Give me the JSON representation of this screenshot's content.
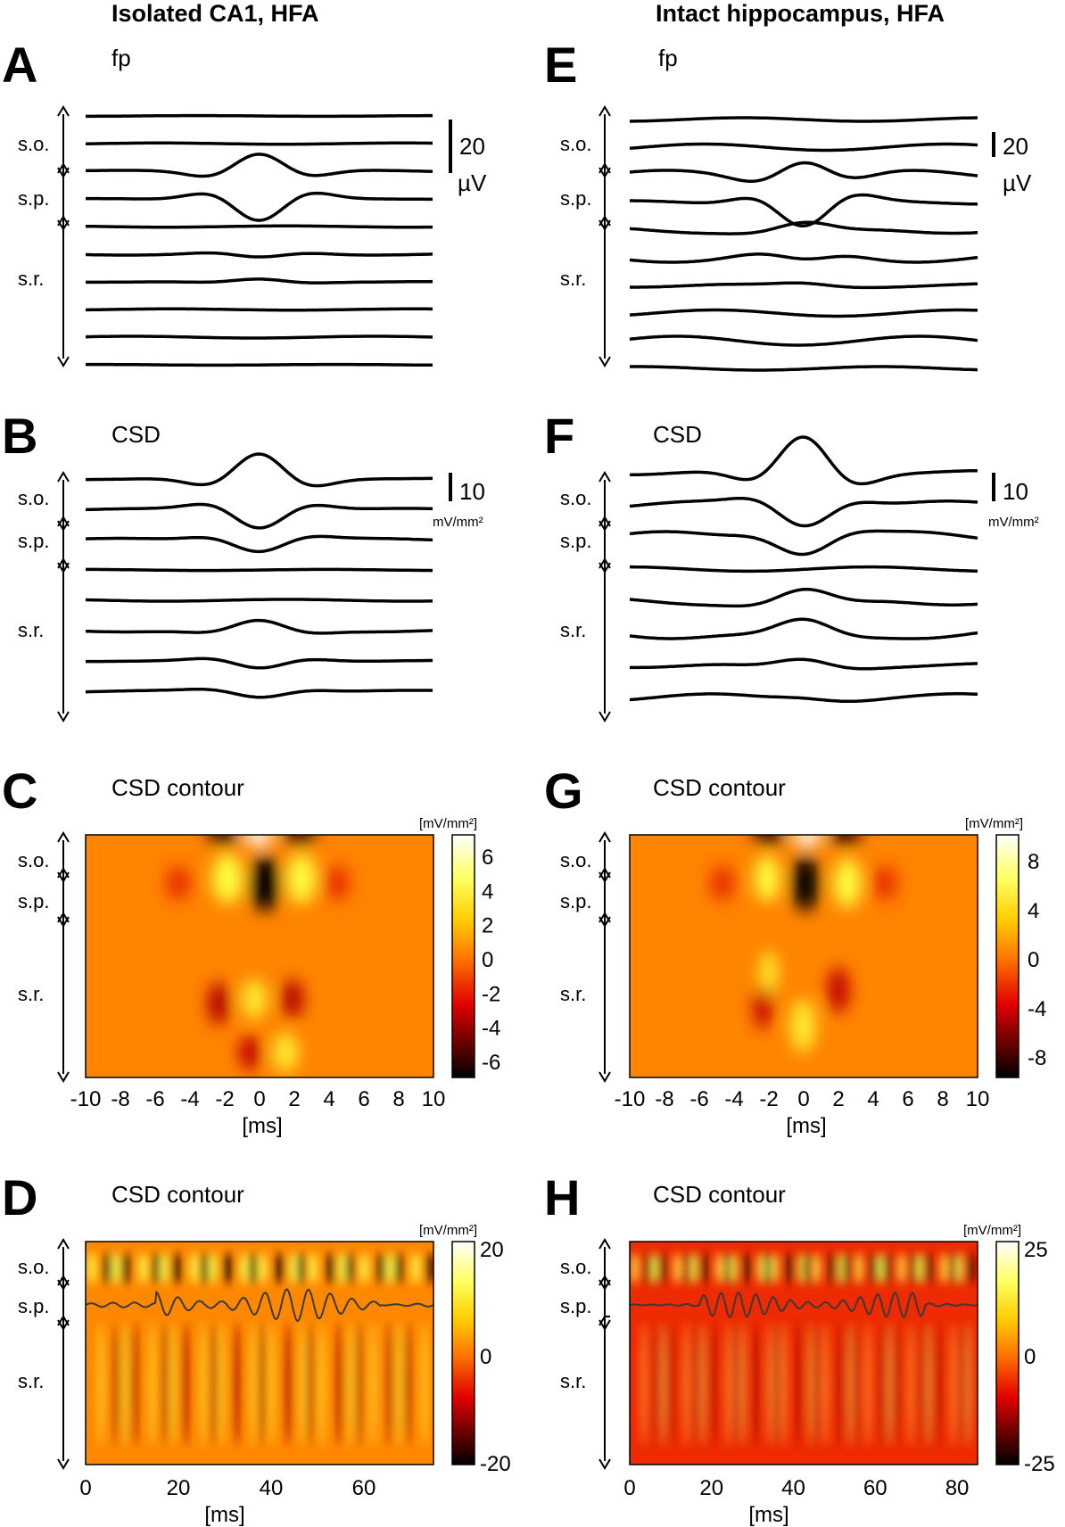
{
  "columns": [
    {
      "title": "Isolated CA1, HFA",
      "panels": {
        "fp": {
          "letter": "A",
          "subtitle": "fp",
          "scale_value": "20",
          "scale_unit": "µV"
        },
        "csd": {
          "letter": "B",
          "subtitle": "CSD",
          "scale_value": "10",
          "scale_unit": "mV/mm²"
        },
        "contour_short": {
          "letter": "C",
          "subtitle": "CSD contour",
          "unit": "[mV/mm²]",
          "colorbar_ticks": [
            "6",
            "4",
            "2",
            "0",
            "-2",
            "-4",
            "-6"
          ],
          "x_ticks": [
            "-10",
            "-8",
            "-6",
            "-4",
            "-2",
            "0",
            "2",
            "4",
            "6",
            "8",
            "10"
          ],
          "x_label": "[ms]"
        },
        "contour_long": {
          "letter": "D",
          "subtitle": "CSD contour",
          "unit": "[mV/mm²]",
          "colorbar_ticks": [
            "20",
            "0",
            "-20"
          ],
          "x_ticks": [
            "0",
            "20",
            "40",
            "60"
          ],
          "x_label": "[ms]"
        }
      }
    },
    {
      "title": "Intact hippocampus, HFA",
      "panels": {
        "fp": {
          "letter": "E",
          "subtitle": "fp",
          "scale_value": "20",
          "scale_unit": "µV"
        },
        "csd": {
          "letter": "F",
          "subtitle": "CSD",
          "scale_value": "10",
          "scale_unit": "mV/mm²"
        },
        "contour_short": {
          "letter": "G",
          "subtitle": "CSD contour",
          "unit": "[mV/mm²]",
          "colorbar_ticks": [
            "8",
            "4",
            "0",
            "-4",
            "-8"
          ],
          "x_ticks": [
            "-10",
            "-8",
            "-6",
            "-4",
            "-2",
            "0",
            "2",
            "4",
            "6",
            "8",
            "10"
          ],
          "x_label": "[ms]"
        },
        "contour_long": {
          "letter": "H",
          "subtitle": "CSD contour",
          "unit": "[mV/mm²]",
          "colorbar_ticks": [
            "25",
            "0",
            "-25"
          ],
          "x_ticks": [
            "0",
            "20",
            "40",
            "60",
            "80"
          ],
          "x_label": "[ms]"
        }
      }
    }
  ],
  "layers": {
    "so": "s.o.",
    "sp": "s.p.",
    "sr": "s.r."
  },
  "colors": {
    "trace": "#000000",
    "overlay": "#3a3a3a",
    "cmap_low": "#000000",
    "cmap_mid": "#ff6600",
    "cmap_high": "#ffffff"
  }
}
